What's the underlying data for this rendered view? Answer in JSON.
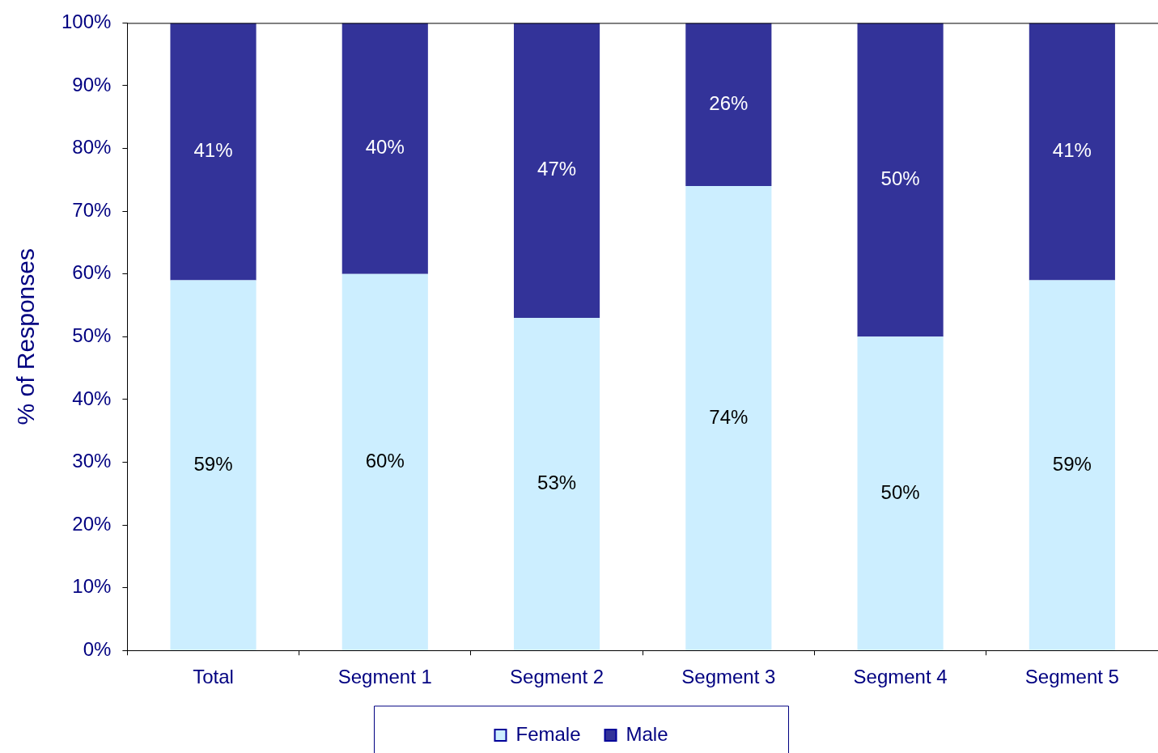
{
  "chart_data": {
    "type": "bar",
    "stacked": true,
    "ylabel": "% of Responses",
    "categories": [
      "Total",
      "Segment 1",
      "Segment 2",
      "Segment 3",
      "Segment 4",
      "Segment 5"
    ],
    "series": [
      {
        "name": "Female",
        "color": "#cceeff",
        "values": [
          59,
          60,
          53,
          74,
          50,
          59
        ],
        "value_labels": [
          "59%",
          "60%",
          "53%",
          "74%",
          "50%",
          "59%"
        ]
      },
      {
        "name": "Male",
        "color": "#333399",
        "values": [
          41,
          40,
          47,
          26,
          50,
          41
        ],
        "value_labels": [
          "41%",
          "40%",
          "47%",
          "26%",
          "50%",
          "41%"
        ]
      }
    ],
    "ylim": [
      0,
      100
    ],
    "yticks": [
      {
        "value": 0,
        "label": "0%"
      },
      {
        "value": 10,
        "label": "10%"
      },
      {
        "value": 20,
        "label": "20%"
      },
      {
        "value": 30,
        "label": "30%"
      },
      {
        "value": 40,
        "label": "40%"
      },
      {
        "value": 50,
        "label": "50%"
      },
      {
        "value": 60,
        "label": "60%"
      },
      {
        "value": 70,
        "label": "70%"
      },
      {
        "value": 80,
        "label": "80%"
      },
      {
        "value": 90,
        "label": "90%"
      },
      {
        "value": 100,
        "label": "100%"
      }
    ],
    "grid": false,
    "legend": "bottom"
  }
}
